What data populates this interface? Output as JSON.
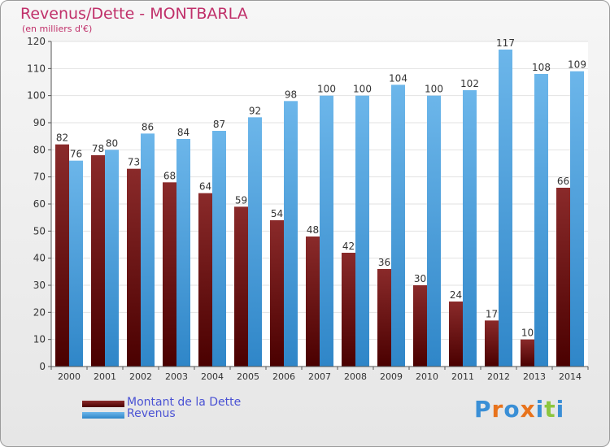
{
  "title": "Revenus/Dette - MONTBARLA",
  "subtitle": "(en milliers d'€)",
  "legend": [
    {
      "label": "Montant de la Dette",
      "color": "#6b1414"
    },
    {
      "label": "Revenus",
      "color": "#4aa3df"
    }
  ],
  "logo": {
    "letters": [
      "P",
      "r",
      "o",
      "x",
      "i",
      "t",
      "i"
    ],
    "colors": [
      "#3a8fd6",
      "#e8731c",
      "#3a8fd6",
      "#e8731c",
      "#3a8fd6",
      "#8cc63f",
      "#3a8fd6"
    ]
  },
  "chart_data": {
    "type": "bar",
    "categories": [
      "2000",
      "2001",
      "2002",
      "2003",
      "2004",
      "2005",
      "2006",
      "2007",
      "2008",
      "2009",
      "2010",
      "2011",
      "2012",
      "2013",
      "2014"
    ],
    "series": [
      {
        "name": "Montant de la Dette",
        "color": "#6b1414",
        "values": [
          82,
          78,
          73,
          68,
          64,
          59,
          54,
          48,
          42,
          36,
          30,
          24,
          17,
          10,
          66
        ]
      },
      {
        "name": "Revenus",
        "color": "#4aa3df",
        "values": [
          76,
          80,
          86,
          84,
          87,
          92,
          98,
          100,
          100,
          104,
          100,
          102,
          117,
          108,
          109
        ]
      }
    ],
    "yticks": [
      0,
      10,
      20,
      30,
      40,
      50,
      60,
      70,
      80,
      90,
      100,
      110,
      120
    ],
    "ylim": [
      0,
      120
    ],
    "grid": true,
    "legend_position": "bottom-left"
  }
}
